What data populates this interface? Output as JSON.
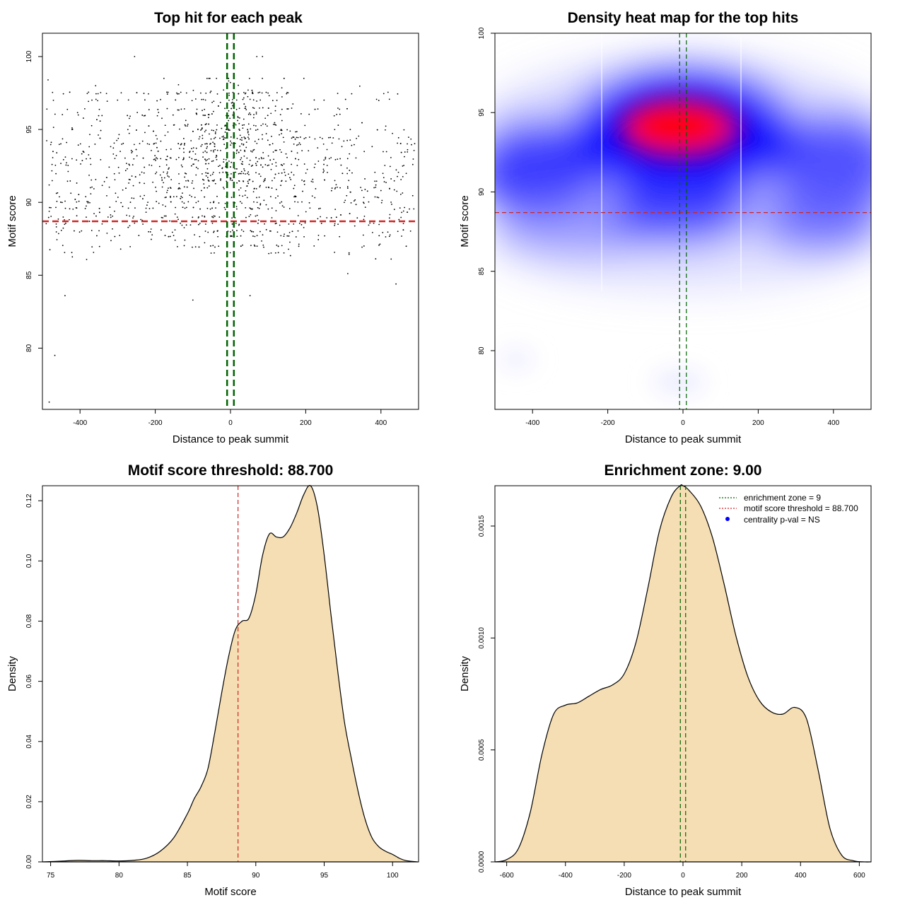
{
  "chart_data": [
    {
      "type": "scatter",
      "title": "Top hit for each peak",
      "xlabel": "Distance to peak summit",
      "ylabel": "Motif score",
      "xlim": [
        -500,
        500
      ],
      "ylim": [
        75.8,
        101.6
      ],
      "xticks": [
        -400,
        -200,
        0,
        200,
        400
      ],
      "yticks": [
        80,
        85,
        90,
        95,
        100
      ],
      "hline": 88.7,
      "vlines": [
        -9,
        9
      ],
      "points_note": "approx. 1500 points; dense band at scores 88-97, concentrated near distance 0",
      "sample_points": [
        {
          "x": -482,
          "y": 76.3
        },
        {
          "x": -467,
          "y": 79.5
        },
        {
          "x": -440,
          "y": 83.6
        },
        {
          "x": -100,
          "y": 83.3
        },
        {
          "x": 52,
          "y": 83.6
        },
        {
          "x": 440,
          "y": 84.4
        },
        {
          "x": -255,
          "y": 100.0
        },
        {
          "x": 70,
          "y": 100.0
        },
        {
          "x": 85,
          "y": 100.0
        },
        {
          "x": -485,
          "y": 98.4
        },
        {
          "x": 0,
          "y": 94.2
        }
      ]
    },
    {
      "type": "heatmap",
      "title": "Density heat map for the top hits",
      "xlabel": "Distance to peak summit",
      "ylabel": "Motif score",
      "xlim": [
        -500,
        500
      ],
      "ylim": [
        76.3,
        100.0
      ],
      "xticks": [
        -400,
        -200,
        0,
        200,
        400
      ],
      "yticks": [
        80,
        85,
        90,
        95,
        100
      ],
      "hline": 88.7,
      "vlines": [
        -9,
        9
      ],
      "density_peak": {
        "x": 0,
        "y": 94.2
      },
      "colors": [
        "#ffffff",
        "#0000ff",
        "#ff0000"
      ]
    },
    {
      "type": "area",
      "title": "Motif score threshold: 88.700",
      "xlabel": "Motif score",
      "ylabel": "Density",
      "xlim": [
        74.4,
        101.9
      ],
      "ylim": [
        0,
        0.125
      ],
      "xticks": [
        75,
        80,
        85,
        90,
        95,
        100
      ],
      "yticks": [
        0.0,
        0.02,
        0.04,
        0.06,
        0.08,
        0.1,
        0.12
      ],
      "ytick_labels": [
        "0.00",
        "0.02",
        "0.04",
        "0.06",
        "0.08",
        "0.10",
        "0.12"
      ],
      "vline": 88.7,
      "x": [
        74.4,
        76,
        77,
        78,
        79,
        80,
        81,
        82,
        83,
        84,
        85,
        85.5,
        86,
        86.5,
        87,
        87.5,
        88,
        88.5,
        89,
        89.5,
        90,
        90.5,
        91,
        91.5,
        92,
        92.5,
        93,
        93.5,
        94,
        94.5,
        95,
        95.5,
        96,
        96.5,
        97,
        97.5,
        98,
        98.5,
        99,
        99.5,
        100,
        100.5,
        101,
        101.9
      ],
      "y": [
        0,
        0.0003,
        0.0005,
        0.0004,
        0.0004,
        0.0003,
        0.0005,
        0.0012,
        0.0035,
        0.008,
        0.016,
        0.021,
        0.025,
        0.031,
        0.043,
        0.056,
        0.068,
        0.077,
        0.08,
        0.081,
        0.089,
        0.102,
        0.109,
        0.108,
        0.108,
        0.111,
        0.116,
        0.122,
        0.125,
        0.118,
        0.102,
        0.082,
        0.063,
        0.046,
        0.034,
        0.023,
        0.014,
        0.008,
        0.005,
        0.0035,
        0.0025,
        0.0012,
        0.0004,
        0
      ]
    },
    {
      "type": "area",
      "title": "Enrichment zone: 9.00",
      "xlabel": "Distance to peak summit",
      "ylabel": "Density",
      "xlim": [
        -640,
        640
      ],
      "ylim": [
        0,
        0.00168
      ],
      "xticks": [
        -600,
        -400,
        -200,
        0,
        200,
        400,
        600
      ],
      "yticks": [
        0.0,
        0.0005,
        0.001,
        0.0015
      ],
      "ytick_labels": [
        "0.0000",
        "0.0005",
        "0.0010",
        "0.0015"
      ],
      "vlines": [
        -9,
        9
      ],
      "x": [
        -640,
        -600,
        -560,
        -520,
        -480,
        -440,
        -400,
        -360,
        -320,
        -280,
        -240,
        -200,
        -160,
        -120,
        -80,
        -40,
        -10,
        0,
        20,
        60,
        100,
        140,
        180,
        220,
        260,
        300,
        340,
        380,
        420,
        460,
        500,
        540,
        580,
        620,
        640
      ],
      "y": [
        0,
        1e-05,
        6e-05,
        0.00022,
        0.00048,
        0.00066,
        0.0007,
        0.00071,
        0.00074,
        0.00077,
        0.00079,
        0.00084,
        0.00098,
        0.00122,
        0.00148,
        0.00163,
        0.00168,
        0.00168,
        0.00166,
        0.00159,
        0.00145,
        0.00124,
        0.00101,
        0.00083,
        0.00072,
        0.00067,
        0.00066,
        0.00069,
        0.00064,
        0.00041,
        0.00015,
        3e-05,
        5e-06,
        0,
        0
      ],
      "legend": [
        {
          "label": "enrichment zone = 9",
          "style": "dotted-line",
          "color": "#006400"
        },
        {
          "label": "motif score threshold = 88.700",
          "style": "dotted-line",
          "color": "#cd2626"
        },
        {
          "label": "centrality p-val = NS",
          "style": "point",
          "color": "#0000ff"
        }
      ],
      "legend_position": "top-right"
    }
  ],
  "colors": {
    "threshold_line": "#cd2626",
    "zone_line": "#006400",
    "fill": "#f5deb3",
    "points": "#000000"
  }
}
